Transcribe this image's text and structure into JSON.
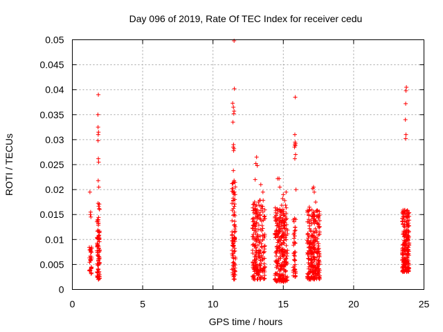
{
  "chart_data": {
    "type": "scatter",
    "title": "Day 096 of 2019, Rate Of TEC Index for receiver cedu",
    "xlabel": "GPS time / hours",
    "ylabel": "ROTI / TECUs",
    "xlim": [
      0,
      25
    ],
    "ylim": [
      0,
      0.05
    ],
    "x_ticks": [
      0,
      5,
      10,
      15,
      20,
      25
    ],
    "x_tick_labels": [
      "0",
      "5",
      "10",
      "15",
      "20",
      "25"
    ],
    "y_ticks": [
      0,
      0.005,
      0.01,
      0.015,
      0.02,
      0.025,
      0.03,
      0.035,
      0.04,
      0.045,
      0.05
    ],
    "y_tick_labels": [
      "0",
      "0.005",
      "0.01",
      "0.015",
      "0.02",
      "0.025",
      "0.03",
      "0.035",
      "0.04",
      "0.045",
      "0.05"
    ],
    "grid": true,
    "marker": "+",
    "color": "#ff0000",
    "series": [
      {
        "name": "ROTI",
        "clusters": [
          {
            "x_range": [
              1.2,
              1.4
            ],
            "y_range": [
              0.003,
              0.0085
            ],
            "count": 28
          },
          {
            "x_range": [
              1.75,
              1.95
            ],
            "y_range": [
              0.002,
              0.018
            ],
            "count": 90
          },
          {
            "x_range": [
              11.35,
              11.6
            ],
            "y_range": [
              0.002,
              0.022
            ],
            "count": 90
          },
          {
            "x_range": [
              12.8,
              13.7
            ],
            "y_range": [
              0.002,
              0.018
            ],
            "count": 220
          },
          {
            "x_range": [
              14.4,
              15.3
            ],
            "y_range": [
              0.0015,
              0.017
            ],
            "count": 260
          },
          {
            "x_range": [
              15.7,
              15.9
            ],
            "y_range": [
              0.0025,
              0.015
            ],
            "count": 45
          },
          {
            "x_range": [
              16.7,
              17.6
            ],
            "y_range": [
              0.002,
              0.016
            ],
            "count": 260
          },
          {
            "x_range": [
              23.45,
              23.95
            ],
            "y_range": [
              0.0035,
              0.016
            ],
            "count": 200
          }
        ],
        "points": [
          [
            1.25,
            0.0195
          ],
          [
            1.3,
            0.0155
          ],
          [
            1.28,
            0.015
          ],
          [
            1.32,
            0.0145
          ],
          [
            1.85,
            0.039
          ],
          [
            1.82,
            0.035
          ],
          [
            1.83,
            0.0325
          ],
          [
            1.86,
            0.0315
          ],
          [
            1.84,
            0.031
          ],
          [
            1.83,
            0.0298
          ],
          [
            1.85,
            0.0262
          ],
          [
            1.87,
            0.0255
          ],
          [
            1.84,
            0.0218
          ],
          [
            1.88,
            0.0205
          ],
          [
            11.5,
            0.0498
          ],
          [
            11.52,
            0.0402
          ],
          [
            11.4,
            0.0373
          ],
          [
            11.45,
            0.0365
          ],
          [
            11.5,
            0.0357
          ],
          [
            11.48,
            0.0352
          ],
          [
            11.42,
            0.0335
          ],
          [
            11.46,
            0.029
          ],
          [
            11.44,
            0.0285
          ],
          [
            11.5,
            0.0282
          ],
          [
            11.47,
            0.0278
          ],
          [
            11.45,
            0.0238
          ],
          [
            11.5,
            0.0218
          ],
          [
            11.48,
            0.0215
          ],
          [
            11.42,
            0.0212
          ],
          [
            13.1,
            0.0265
          ],
          [
            13.05,
            0.0252
          ],
          [
            13.15,
            0.0248
          ],
          [
            13.4,
            0.021
          ],
          [
            13.0,
            0.022
          ],
          [
            13.55,
            0.0195
          ],
          [
            14.7,
            0.0222
          ],
          [
            14.6,
            0.0222
          ],
          [
            14.75,
            0.0205
          ],
          [
            15.2,
            0.0195
          ],
          [
            15.0,
            0.019
          ],
          [
            14.95,
            0.0182
          ],
          [
            15.1,
            0.0178
          ],
          [
            15.85,
            0.0385
          ],
          [
            15.82,
            0.031
          ],
          [
            15.84,
            0.0295
          ],
          [
            15.86,
            0.0292
          ],
          [
            15.83,
            0.029
          ],
          [
            15.85,
            0.0288
          ],
          [
            15.8,
            0.0285
          ],
          [
            15.87,
            0.027
          ],
          [
            15.82,
            0.0262
          ],
          [
            15.9,
            0.02
          ],
          [
            17.15,
            0.0205
          ],
          [
            17.1,
            0.0202
          ],
          [
            17.2,
            0.0195
          ],
          [
            16.85,
            0.0165
          ],
          [
            17.3,
            0.0175
          ],
          [
            23.75,
            0.0405
          ],
          [
            23.72,
            0.0398
          ],
          [
            23.7,
            0.0372
          ],
          [
            23.68,
            0.034
          ],
          [
            23.72,
            0.031
          ],
          [
            23.7,
            0.0302
          ]
        ]
      }
    ]
  }
}
